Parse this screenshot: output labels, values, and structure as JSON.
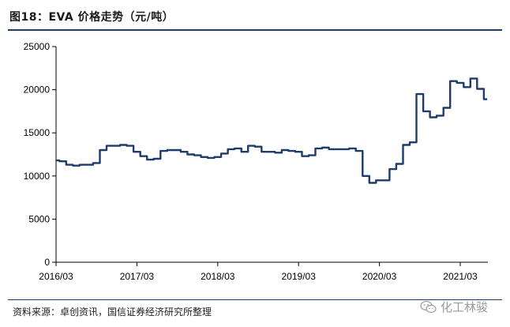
{
  "header": {
    "title": "图18：EVA 价格走势（元/吨）"
  },
  "footer": {
    "source": "资料来源：卓创资讯，国信证券经济研究所整理"
  },
  "watermark": {
    "text": "化工林骏",
    "icon": "wechat-icon"
  },
  "colors": {
    "line": "#1f3b6a",
    "rule": "#1f3b6a",
    "axis": "#000000"
  },
  "chart_data": {
    "type": "line",
    "title": "",
    "xlabel": "",
    "ylabel": "",
    "ylim": [
      0,
      25000
    ],
    "yticks": [
      0,
      5000,
      10000,
      15000,
      20000,
      25000
    ],
    "ytick_labels": [
      "0",
      "5000",
      "10000",
      "15000",
      "20000",
      "25000"
    ],
    "xlim": [
      "2016-03",
      "2021-07"
    ],
    "xticks": [
      "2016/03",
      "2017/03",
      "2018/03",
      "2019/03",
      "2020/03",
      "2021/03"
    ],
    "grid": false,
    "legend": "none",
    "series": [
      {
        "x": [
          "2016-03",
          "2016-04",
          "2016-05",
          "2016-06",
          "2016-07",
          "2016-08",
          "2016-09",
          "2016-10",
          "2016-11",
          "2016-12",
          "2017-01",
          "2017-02",
          "2017-03",
          "2017-04",
          "2017-05",
          "2017-06",
          "2017-07",
          "2017-08",
          "2017-09",
          "2017-10",
          "2017-11",
          "2017-12",
          "2018-01",
          "2018-02",
          "2018-03",
          "2018-04",
          "2018-05",
          "2018-06",
          "2018-07",
          "2018-08",
          "2018-09",
          "2018-10",
          "2018-11",
          "2018-12",
          "2019-01",
          "2019-02",
          "2019-03",
          "2019-04",
          "2019-05",
          "2019-06",
          "2019-07",
          "2019-08",
          "2019-09",
          "2019-10",
          "2019-11",
          "2019-12",
          "2020-01",
          "2020-02",
          "2020-03",
          "2020-04",
          "2020-05",
          "2020-06",
          "2020-07",
          "2020-08",
          "2020-09",
          "2020-10",
          "2020-11",
          "2020-12",
          "2021-01",
          "2021-02",
          "2021-03",
          "2021-04",
          "2021-05",
          "2021-06",
          "2021-07"
        ],
        "values": [
          11800,
          11700,
          11300,
          11200,
          11300,
          11300,
          11500,
          13000,
          13500,
          13500,
          13600,
          13500,
          12800,
          12300,
          11900,
          12000,
          12900,
          13000,
          13000,
          12800,
          12500,
          12400,
          12200,
          12100,
          12200,
          12600,
          13100,
          13200,
          12800,
          13500,
          13400,
          12800,
          12800,
          12700,
          13000,
          12900,
          12800,
          12300,
          12400,
          13200,
          13300,
          13100,
          13100,
          13100,
          13200,
          12900,
          10000,
          9200,
          9500,
          9500,
          10800,
          11400,
          13600,
          13900,
          19500,
          17500,
          16800,
          17000,
          17900,
          21000,
          20800,
          20300,
          21300,
          20100,
          18900
        ]
      }
    ]
  }
}
